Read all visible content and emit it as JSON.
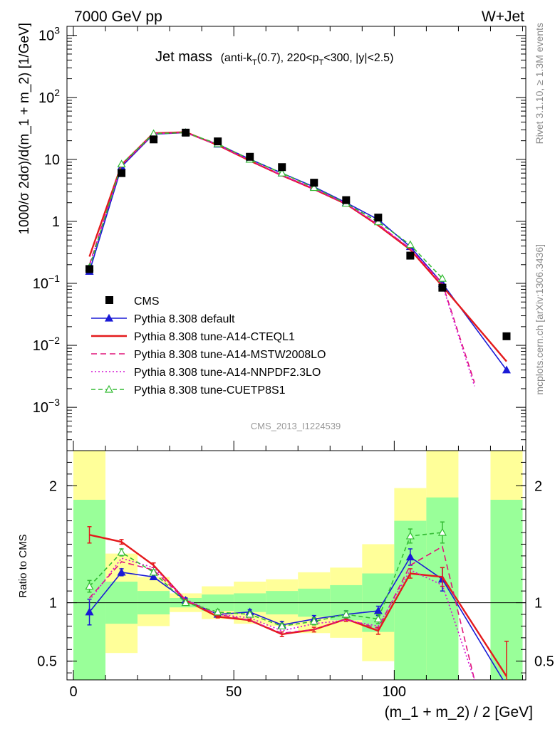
{
  "chart_data": {
    "type": "line",
    "header_left": "7000 GeV pp",
    "header_right": "W+Jet",
    "title": "Jet mass",
    "title_cuts": {
      "pre1": "(anti-k",
      "sub1": "T",
      "mid": "(0.7), 220<p",
      "sub2": "T",
      "post": "<300, |y|<2.5)"
    },
    "ylabel": "1000/σ 2dσ)/d(m_1 + m_2) [1/GeV]",
    "ratio_ylabel": "Ratio to CMS",
    "xlabel": "(m_1 + m_2) / 2 [GeV]",
    "right_label_top": "Rivet 3.1.10, ≥ 1.3M events",
    "right_label_bottom": "mcplots.cern.ch [arXiv:1306.3436]",
    "analysis_id": "CMS_2013_I1224539",
    "xlim": [
      -2,
      141
    ],
    "ylim_main": [
      0.0002,
      1400
    ],
    "y_scale_main": "log",
    "ylim_ratio": [
      0.34,
      2.3
    ],
    "ratio_reference_line": 1,
    "main_ticks": [
      {
        "value": 0.001,
        "base": "10",
        "exp": "−3"
      },
      {
        "value": 0.01,
        "base": "10",
        "exp": "−2"
      },
      {
        "value": 0.1,
        "base": "10",
        "exp": "−1"
      },
      {
        "value": 1,
        "base": "1",
        "exp": ""
      },
      {
        "value": 10,
        "base": "10",
        "exp": ""
      },
      {
        "value": 100,
        "base": "10",
        "exp": "2"
      },
      {
        "value": 1000,
        "base": "10",
        "exp": "3"
      }
    ],
    "ratio_ticks": [
      {
        "value": 0.5,
        "label": "0.5"
      },
      {
        "value": 1,
        "label": "1"
      },
      {
        "value": 2,
        "label": "2"
      }
    ],
    "x_ticks": [
      {
        "value": 0,
        "label": "0"
      },
      {
        "value": 50,
        "label": "50"
      },
      {
        "value": 100,
        "label": "100"
      }
    ],
    "bins": [
      [
        0,
        10
      ],
      [
        10,
        20
      ],
      [
        20,
        30
      ],
      [
        30,
        40
      ],
      [
        40,
        50
      ],
      [
        50,
        60
      ],
      [
        60,
        70
      ],
      [
        70,
        80
      ],
      [
        80,
        90
      ],
      [
        90,
        100
      ],
      [
        100,
        110
      ],
      [
        110,
        120
      ],
      [
        120,
        130
      ],
      [
        130,
        140
      ]
    ],
    "bands": [
      {
        "x": [
          0,
          10
        ],
        "yellow": [
          0.34,
          2.3
        ],
        "green": [
          0.34,
          1.88
        ]
      },
      {
        "x": [
          10,
          20
        ],
        "yellow": [
          0.57,
          1.42
        ],
        "green": [
          0.82,
          1.18
        ]
      },
      {
        "x": [
          20,
          30
        ],
        "yellow": [
          0.8,
          1.22
        ],
        "green": [
          0.9,
          1.1
        ]
      },
      {
        "x": [
          30,
          40
        ],
        "yellow": [
          0.92,
          1.08
        ],
        "green": [
          0.96,
          1.04
        ]
      },
      {
        "x": [
          40,
          50
        ],
        "yellow": [
          0.86,
          1.14
        ],
        "green": [
          0.93,
          1.07
        ]
      },
      {
        "x": [
          50,
          60
        ],
        "yellow": [
          0.82,
          1.18
        ],
        "green": [
          0.92,
          1.08
        ]
      },
      {
        "x": [
          60,
          70
        ],
        "yellow": [
          0.8,
          1.2
        ],
        "green": [
          0.9,
          1.1
        ]
      },
      {
        "x": [
          70,
          80
        ],
        "yellow": [
          0.74,
          1.26
        ],
        "green": [
          0.88,
          1.12
        ]
      },
      {
        "x": [
          80,
          90
        ],
        "yellow": [
          0.7,
          1.3
        ],
        "green": [
          0.85,
          1.15
        ]
      },
      {
        "x": [
          90,
          100
        ],
        "yellow": [
          0.5,
          1.5
        ],
        "green": [
          0.75,
          1.25
        ]
      },
      {
        "x": [
          100,
          110
        ],
        "yellow": [
          0.34,
          1.98
        ],
        "green": [
          0.34,
          1.7
        ]
      },
      {
        "x": [
          110,
          120
        ],
        "yellow": [
          0.34,
          2.3
        ],
        "green": [
          0.34,
          1.9
        ]
      },
      {
        "x": [
          130,
          140
        ],
        "yellow": [
          0.34,
          2.3
        ],
        "green": [
          0.34,
          1.88
        ]
      }
    ],
    "data": {
      "name": "CMS",
      "x": [
        5,
        15,
        25,
        35,
        45,
        55,
        65,
        75,
        85,
        95,
        105,
        115,
        135
      ],
      "y": [
        0.17,
        6.0,
        21.0,
        27.0,
        19.5,
        11.0,
        7.5,
        4.2,
        2.2,
        1.15,
        0.28,
        0.085,
        0.014
      ]
    },
    "series": [
      {
        "name": "Pythia 8.308 default",
        "color": "#1a1ad6",
        "dash": "solid",
        "marker": "filled-triangle",
        "x": [
          5,
          15,
          25,
          35,
          45,
          55,
          65,
          75,
          85,
          95,
          105,
          115,
          135
        ],
        "y": [
          0.155,
          7.6,
          25.5,
          27.0,
          17.5,
          10.1,
          6.0,
          3.6,
          2.0,
          1.07,
          0.39,
          0.1,
          0.004
        ],
        "ratio": [
          0.92,
          1.26,
          1.22,
          1.02,
          0.9,
          0.92,
          0.81,
          0.86,
          0.9,
          0.93,
          1.39,
          1.2,
          0.29
        ],
        "ratio_err": [
          0.11,
          0.03,
          0.02,
          0.02,
          0.02,
          0.02,
          0.03,
          0.03,
          0.03,
          0.04,
          0.07,
          0.1,
          0
        ]
      },
      {
        "name": "Pythia 8.308 tune-A14-CTEQL1",
        "color": "#e41a1c",
        "dash": "solid",
        "marker": "none",
        "x": [
          5,
          15,
          25,
          35,
          45,
          55,
          65,
          75,
          85,
          95,
          105,
          115,
          135
        ],
        "y": [
          0.27,
          8.2,
          26.5,
          27.5,
          17.0,
          9.5,
          5.5,
          3.3,
          1.9,
          0.86,
          0.35,
          0.09,
          0.0055
        ],
        "ratio": [
          1.58,
          1.52,
          1.32,
          1.02,
          0.88,
          0.85,
          0.73,
          0.77,
          0.86,
          0.76,
          1.25,
          1.22,
          0.37
        ],
        "ratio_err": [
          0.07,
          0.02,
          0.02,
          0.01,
          0.01,
          0.01,
          0.02,
          0.02,
          0.02,
          0.03,
          0.04,
          0.08,
          0.3
        ]
      },
      {
        "name": "Pythia 8.308 tune-A14-MSTW2008LO",
        "color": "#e0157a",
        "dash": "8,5",
        "marker": "none",
        "x": [
          5,
          15,
          25,
          35,
          45,
          55,
          65,
          75,
          85,
          95,
          105,
          115,
          125
        ],
        "y": [
          0.2,
          8.0,
          26.0,
          27.0,
          17.0,
          9.6,
          5.5,
          3.3,
          1.9,
          0.9,
          0.36,
          0.1,
          0.0025
        ],
        "ratio": [
          1.04,
          1.35,
          1.28,
          1.02,
          0.9,
          0.85,
          0.74,
          0.77,
          0.86,
          0.78,
          1.32,
          1.48,
          0.34
        ],
        "ratio_err": [
          0,
          0,
          0,
          0,
          0,
          0,
          0,
          0,
          0,
          0,
          0,
          0,
          0
        ]
      },
      {
        "name": "Pythia 8.308 tune-A14-NNPDF2.3LO",
        "color": "#d413d4",
        "dash": "2,3",
        "marker": "none",
        "x": [
          5,
          15,
          25,
          35,
          45,
          55,
          65,
          75,
          85,
          95,
          105,
          115,
          125
        ],
        "y": [
          0.19,
          8.1,
          26.0,
          27.0,
          17.2,
          9.7,
          5.6,
          3.4,
          1.95,
          0.88,
          0.37,
          0.095,
          0.0022
        ],
        "ratio": [
          1.02,
          1.38,
          1.3,
          1.03,
          0.9,
          0.87,
          0.76,
          0.82,
          0.85,
          0.8,
          1.28,
          1.15,
          0.34
        ],
        "ratio_err": [
          0,
          0,
          0,
          0,
          0,
          0,
          0,
          0,
          0,
          0,
          0,
          0,
          0
        ]
      },
      {
        "name": "Pythia 8.308 tune-CUETP8S1",
        "color": "#33bb33",
        "dash": "6,4",
        "marker": "open-triangle",
        "x": [
          5,
          15,
          25,
          35,
          45,
          55,
          65,
          75,
          85,
          95,
          105,
          115
        ],
        "y": [
          0.18,
          8.4,
          26.0,
          27.0,
          17.8,
          10.0,
          6.0,
          3.5,
          1.95,
          0.98,
          0.42,
          0.12
        ],
        "ratio": [
          1.14,
          1.43,
          1.26,
          1.0,
          0.92,
          0.9,
          0.8,
          0.84,
          0.9,
          0.86,
          1.57,
          1.6
        ],
        "ratio_err": [
          0.05,
          0.03,
          0.02,
          0.02,
          0.02,
          0.02,
          0.02,
          0.03,
          0.03,
          0.04,
          0.06,
          0.09
        ]
      }
    ],
    "legend_placement": "middle-left"
  }
}
